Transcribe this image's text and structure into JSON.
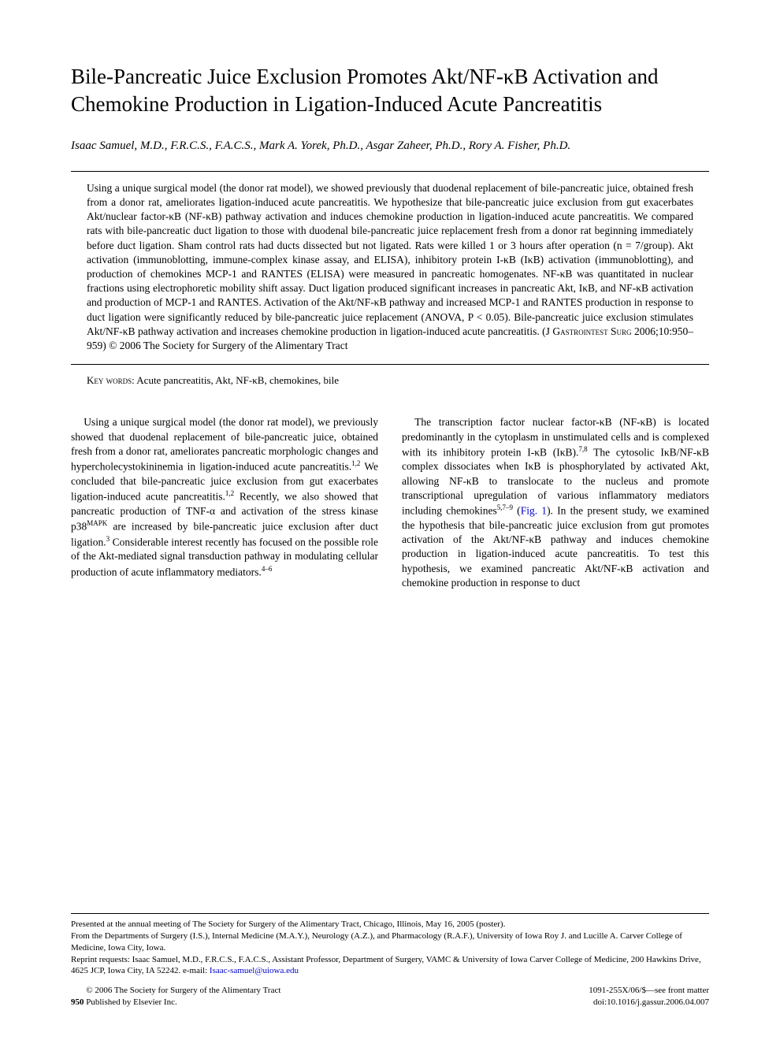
{
  "title": "Bile-Pancreatic Juice Exclusion Promotes Akt/NF-κB Activation and Chemokine Production in Ligation-Induced Acute Pancreatitis",
  "authors": "Isaac Samuel, M.D., F.R.C.S., F.A.C.S., Mark A. Yorek, Ph.D., Asgar Zaheer, Ph.D., Rory A. Fisher, Ph.D.",
  "abstract": "Using a unique surgical model (the donor rat model), we showed previously that duodenal replacement of bile-pancreatic juice, obtained fresh from a donor rat, ameliorates ligation-induced acute pancreatitis. We hypothesize that bile-pancreatic juice exclusion from gut exacerbates Akt/nuclear factor-κB (NF-κB) pathway activation and induces chemokine production in ligation-induced acute pancreatitis. We compared rats with bile-pancreatic duct ligation to those with duodenal bile-pancreatic juice replacement fresh from a donor rat beginning immediately before duct ligation. Sham control rats had ducts dissected but not ligated. Rats were killed 1 or 3 hours after operation (n = 7/group). Akt activation (immunoblotting, immune-complex kinase assay, and ELISA), inhibitory protein I-κB (IκB) activation (immunoblotting), and production of chemokines MCP-1 and RANTES (ELISA) were measured in pancreatic homogenates. NF-κB was quantitated in nuclear fractions using electrophoretic mobility shift assay. Duct ligation produced significant increases in pancreatic Akt, IκB, and NF-κB activation and production of MCP-1 and RANTES. Activation of the Akt/NF-κB pathway and increased MCP-1 and RANTES production in response to duct ligation were significantly reduced by bile-pancreatic juice replacement (ANOVA, P < 0.05). Bile-pancreatic juice exclusion stimulates Akt/NF-κB pathway activation and increases chemokine production in ligation-induced acute pancreatitis. (J ",
  "abstract_journal": "Gastrointest Surg",
  "abstract_tail": " 2006;10:950–959) © 2006 The Society for Surgery of the Alimentary Tract",
  "keywords_label": "Key words:",
  "keywords": " Acute pancreatitis, Akt, NF-κB, chemokines, bile",
  "body": {
    "col1_p1_a": "Using a unique surgical model (the donor rat model), we previously showed that duodenal replacement of bile-pancreatic juice, obtained fresh from a donor rat, ameliorates pancreatic morphologic changes and hypercholecystokininemia in ligation-induced acute pancreatitis.",
    "col1_sup1": "1,2",
    "col1_p1_b": " We concluded that bile-pancreatic juice exclusion from gut exacerbates ligation-induced acute pancreatitis.",
    "col1_sup2": "1,2",
    "col1_p1_c": " Recently, we also showed that pancreatic production of TNF-α and activation of the stress kinase p38",
    "col1_sup_mapk": "MAPK",
    "col1_p1_d": " are increased by bile-pancreatic juice exclusion after duct ligation.",
    "col1_sup3": "3",
    "col1_p1_e": " Considerable interest recently has focused on the possible role of the Akt-mediated signal transduction pathway in modulating cellular production of acute inflammatory mediators.",
    "col1_sup4": "4–6",
    "col2_p1_a": "The transcription factor nuclear factor-κB (NF-κB) is located predominantly in the cytoplasm in unstimulated cells and is complexed with its inhibitory protein I-κB (IκB).",
    "col2_sup1": "7,8",
    "col2_p1_b": " The cytosolic IκB/NF-κB complex dissociates when IκB is phosphorylated by activated Akt, allowing NF-κB to translocate to the nucleus and promote transcriptional upregulation of various inflammatory mediators including chemokines",
    "col2_sup2": "5,7–9",
    "col2_p1_c": " (",
    "col2_fig": "Fig. 1",
    "col2_p1_d": "). In the present study, we examined the hypothesis that bile-pancreatic juice exclusion from gut promotes activation of the Akt/NF-κB pathway and induces chemokine production in ligation-induced acute pancreatitis. To test this hypothesis, we examined pancreatic Akt/NF-κB activation and chemokine production in response to duct"
  },
  "footer": {
    "presented": "Presented at the annual meeting of The Society for Surgery of the Alimentary Tract, Chicago, Illinois, May 16, 2005 (poster).",
    "from": "From the Departments of Surgery (I.S.), Internal Medicine (M.A.Y.), Neurology (A.Z.), and Pharmacology (R.A.F.), University of Iowa Roy J. and Lucille A. Carver College of Medicine, Iowa City, Iowa.",
    "reprint": "Reprint requests: Isaac Samuel, M.D., F.R.C.S., F.A.C.S., Assistant Professor, Department of Surgery, VAMC & University of Iowa Carver College of Medicine, 200 Hawkins Drive, 4625 JCP, Iowa City, IA 52242. e-mail: ",
    "email": "Isaac-samuel@uiowa.edu",
    "copyright": "© 2006 The Society for Surgery of the Alimentary Tract",
    "published": "Published by Elsevier Inc.",
    "page_num": "950",
    "issn": "1091-255X/06/$—see front matter",
    "doi": "doi:10.1016/j.gassur.2006.04.007"
  }
}
